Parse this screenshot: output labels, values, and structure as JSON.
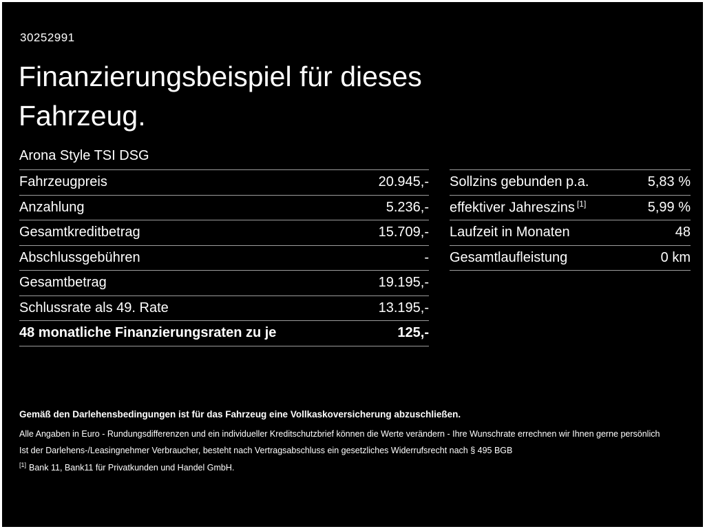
{
  "colors": {
    "background": "#000000",
    "text": "#ffffff",
    "divider": "#9d9d9d",
    "frame": "#ffffff"
  },
  "header": {
    "vehicle_id": "30252991",
    "title_lines": [
      "Finanzierungsbeispiel für dieses",
      "Fahrzeug."
    ],
    "model": "Arona Style TSI DSG"
  },
  "finance_table": {
    "rows": [
      {
        "label": "Fahrzeugpreis",
        "value": "20.945,-"
      },
      {
        "label": "Anzahlung",
        "value": "5.236,-"
      },
      {
        "label": "Gesamtkreditbetrag",
        "value": "15.709,-"
      },
      {
        "label": "Abschlussgebühren",
        "value": "-"
      },
      {
        "label": "Gesamtbetrag",
        "value": "19.195,-"
      },
      {
        "label": "Schlussrate als 49. Rate",
        "value": "13.195,-"
      },
      {
        "label": "48 monatliche Finanzierungsraten zu je",
        "value": "125,-"
      }
    ]
  },
  "conditions_table": {
    "rows": [
      {
        "label": "Sollzins gebunden p.a.",
        "sup": "",
        "value": "5,83 %"
      },
      {
        "label": "effektiver Jahreszins",
        "sup": "[1]",
        "value": "5,99 %"
      },
      {
        "label": "Laufzeit in Monaten",
        "sup": "",
        "value": "48"
      },
      {
        "label": "Gesamtlaufleistung",
        "sup": "",
        "value": "0 km"
      }
    ]
  },
  "footnotes": {
    "bold": "Gemäß den Darlehensbedingungen ist für das Fahrzeug eine Vollkaskoversicherung abzuschließen.",
    "line1": "Alle Angaben in Euro - Rundungsdifferenzen und ein individueller Kreditschutzbrief können die Werte verändern - Ihre Wunschrate errechnen wir Ihnen gerne persönlich",
    "line2": "Ist der Darlehens-/Leasingnehmer Verbraucher, besteht nach Vertragsabschluss ein gesetzliches Widerrufsrecht nach § 495 BGB",
    "ref_sup": "[1]",
    "ref_text": "Bank 11, Bank11 für Privatkunden und Handel GmbH."
  }
}
